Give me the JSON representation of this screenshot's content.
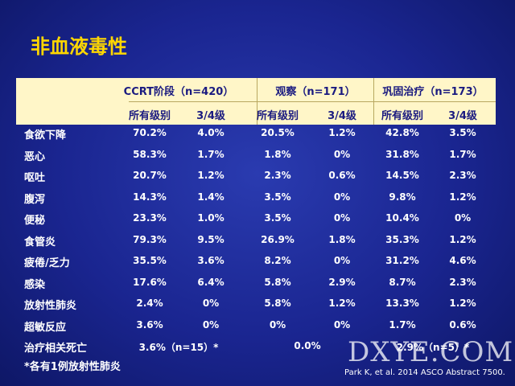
{
  "header": {
    "title": "非血液毒性"
  },
  "table": {
    "group_headers": [
      "CCRT阶段（n=420）",
      "观察（n=171）",
      "巩固治疗（n=173）"
    ],
    "sub_headers": [
      "所有级别",
      "3/4级",
      "所有级别",
      "3/4级",
      "所有级别",
      "3/4级"
    ],
    "rows": [
      [
        "食欲下降",
        "70.2%",
        "4.0%",
        "20.5%",
        "1.2%",
        "42.8%",
        "3.5%"
      ],
      [
        "恶心",
        "58.3%",
        "1.7%",
        "1.8%",
        "0%",
        "31.8%",
        "1.7%"
      ],
      [
        "呕吐",
        "20.7%",
        "1.2%",
        "2.3%",
        "0.6%",
        "14.5%",
        "2.3%"
      ],
      [
        "腹泻",
        "14.3%",
        "1.4%",
        "3.5%",
        "0%",
        "9.8%",
        "1.2%"
      ],
      [
        "便秘",
        "23.3%",
        "1.0%",
        "3.5%",
        "0%",
        "10.4%",
        "0%"
      ],
      [
        "食管炎",
        "79.3%",
        "9.5%",
        "26.9%",
        "1.8%",
        "35.3%",
        "1.2%"
      ],
      [
        "疲倦/乏力",
        "35.5%",
        "3.6%",
        "8.2%",
        "0%",
        "31.2%",
        "4.6%"
      ],
      [
        "感染",
        "17.6%",
        "6.4%",
        "5.8%",
        "2.9%",
        "8.7%",
        "2.3%"
      ],
      [
        "放射性肺炎",
        "2.4%",
        "0%",
        "5.8%",
        "1.2%",
        "13.3%",
        "1.2%"
      ],
      [
        "超敏反应",
        "3.6%",
        "0%",
        "0%",
        "0%",
        "1.7%",
        "0.6%"
      ]
    ],
    "last_row": {
      "label": "治疗相关死亡",
      "values": [
        "3.6%（n=15）*",
        "0.0%",
        "2.9%（n=5）*"
      ]
    }
  },
  "footnote": "*各有1例放射性肺炎",
  "citation": "Park K, et al. 2014 ASCO Abstract 7500.",
  "watermark": "DXYE.COM"
}
